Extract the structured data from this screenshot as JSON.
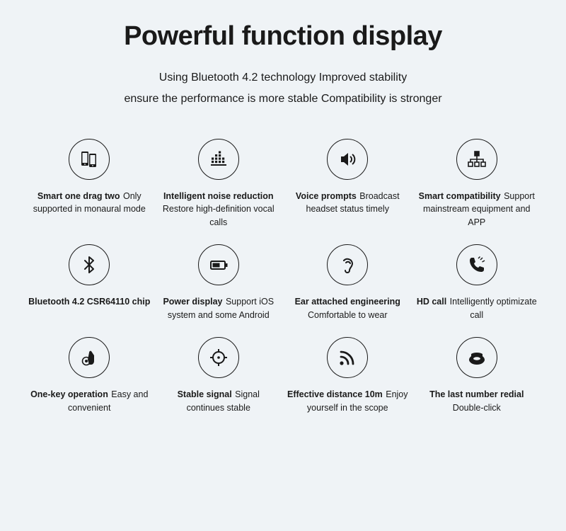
{
  "title": "Powerful function display",
  "subtitle_line1": "Using Bluetooth 4.2 technology   Improved stability",
  "subtitle_line2": "ensure the performance is more stable Compatibility is stronger",
  "features": [
    {
      "icon": "phones-icon",
      "title": "Smart one drag two",
      "desc": "Only supported in monaural mode"
    },
    {
      "icon": "equalizer-icon",
      "title": "Intelligent noise reduction",
      "desc": "Restore high-definition vocal calls"
    },
    {
      "icon": "speaker-icon",
      "title": "Voice prompts",
      "desc": "Broadcast headset status timely"
    },
    {
      "icon": "network-icon",
      "title": "Smart compatibility",
      "desc": "Support mainstream equipment and APP"
    },
    {
      "icon": "bluetooth-icon",
      "title": "Bluetooth 4.2 CSR64110 chip",
      "desc": ""
    },
    {
      "icon": "battery-icon",
      "title": "Power display",
      "desc": "Support iOS system and some Android"
    },
    {
      "icon": "ear-icon",
      "title": "Ear attached engineering",
      "desc": "Comfortable to wear"
    },
    {
      "icon": "call-icon",
      "title": "HD call",
      "desc": "Intelligently optimizate call"
    },
    {
      "icon": "touch-icon",
      "title": "One-key operation",
      "desc": "Easy and convenient"
    },
    {
      "icon": "target-icon",
      "title": "Stable signal",
      "desc": "Signal continues stable"
    },
    {
      "icon": "signal-icon",
      "title": "Effective distance 10m",
      "desc": "Enjoy yourself in the scope"
    },
    {
      "icon": "redial-icon",
      "title": "The last number redial",
      "desc": "Double-click"
    }
  ],
  "styling": {
    "background_color": "#eff3f6",
    "text_color": "#1a1a1a",
    "title_fontsize": 38,
    "subtitle_fontsize": 16,
    "feature_fontsize": 12.5,
    "icon_circle_diameter": 58,
    "icon_border_width": 1.5,
    "grid_columns": 4,
    "grid_rows": 3
  }
}
